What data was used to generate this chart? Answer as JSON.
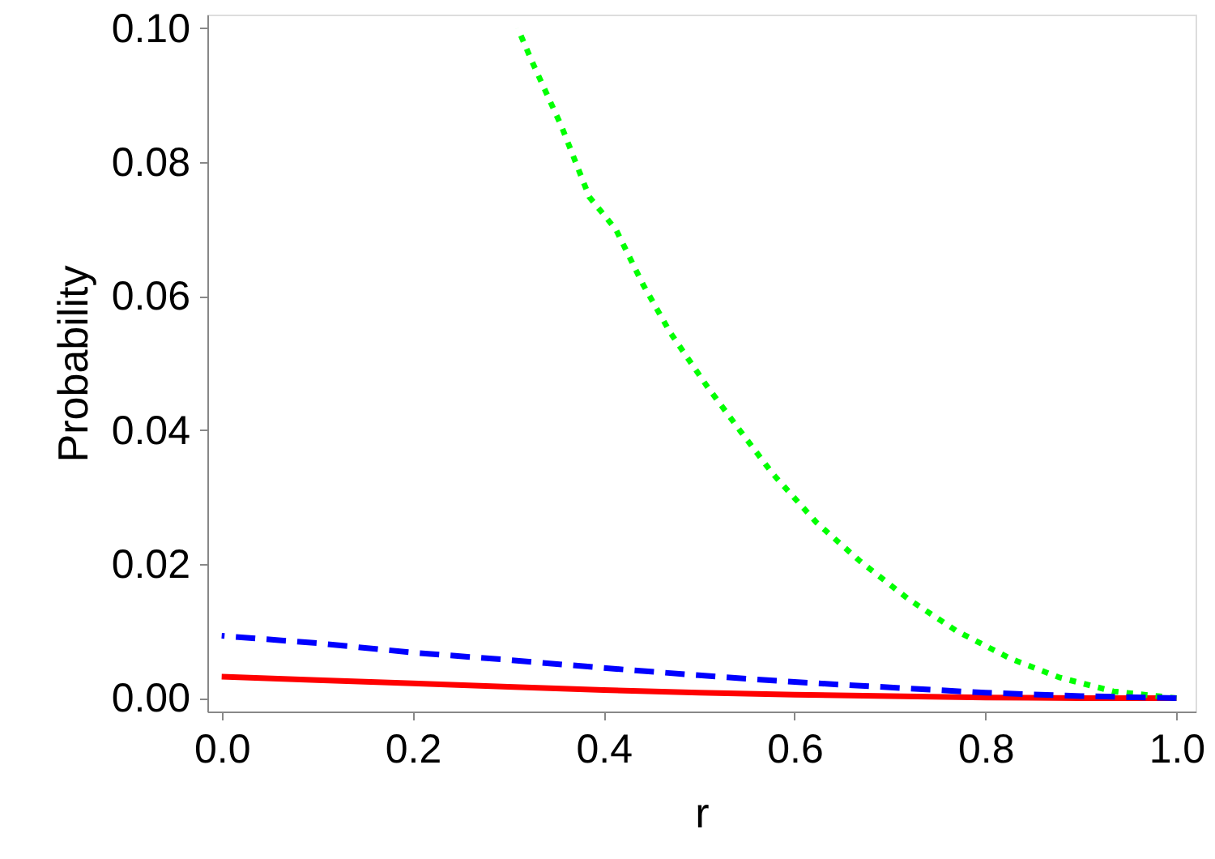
{
  "chart_data": {
    "type": "line",
    "xlabel": "r",
    "ylabel": "Probability",
    "xlim": [
      -0.015,
      1.02
    ],
    "ylim": [
      -0.002,
      0.102
    ],
    "xticks": [
      {
        "value": 0,
        "label": "0.0"
      },
      {
        "value": 0.2,
        "label": "0.2"
      },
      {
        "value": 0.4,
        "label": "0.4"
      },
      {
        "value": 0.6,
        "label": "0.6"
      },
      {
        "value": 0.8,
        "label": "0.8"
      },
      {
        "value": 1,
        "label": "1.0"
      }
    ],
    "yticks": [
      {
        "value": 0,
        "label": "0.00"
      },
      {
        "value": 0.02,
        "label": "0.02"
      },
      {
        "value": 0.04,
        "label": "0.04"
      },
      {
        "value": 0.06,
        "label": "0.06"
      },
      {
        "value": 0.08,
        "label": "0.08"
      },
      {
        "value": 0.1,
        "label": "0.10"
      }
    ],
    "grid": false,
    "series": [
      {
        "color": "#ff0000",
        "line_style": "solid",
        "x": [
          0,
          0.1,
          0.2,
          0.3,
          0.4,
          0.5,
          0.6,
          0.7,
          0.8,
          0.9,
          1.0
        ],
        "values": [
          0.0032,
          0.0027,
          0.0022,
          0.0017,
          0.0012,
          0.0008,
          0.0005,
          0.0003,
          0.0001,
          0.0,
          0.0
        ]
      },
      {
        "color": "#0000ff",
        "line_style": "dashed",
        "x": [
          0,
          0.1,
          0.2,
          0.3,
          0.4,
          0.5,
          0.6,
          0.7,
          0.8,
          0.9,
          1.0
        ],
        "values": [
          0.0093,
          0.0082,
          0.0068,
          0.0057,
          0.0045,
          0.0034,
          0.0024,
          0.0016,
          0.0008,
          0.0003,
          0.0
        ]
      },
      {
        "color": "#00ff00",
        "line_style": "dotted",
        "x": [
          0.31,
          0.325,
          0.356,
          0.385,
          0.413,
          0.441,
          0.47,
          0.509,
          0.543,
          0.577,
          0.623,
          0.668,
          0.719,
          0.77,
          0.826,
          0.877,
          0.934,
          1.0
        ],
        "values": [
          0.1,
          0.095,
          0.0853,
          0.0748,
          0.0699,
          0.0618,
          0.0545,
          0.0464,
          0.0399,
          0.0335,
          0.0262,
          0.0205,
          0.0148,
          0.01,
          0.0059,
          0.0031,
          0.001,
          0.0
        ]
      }
    ]
  }
}
